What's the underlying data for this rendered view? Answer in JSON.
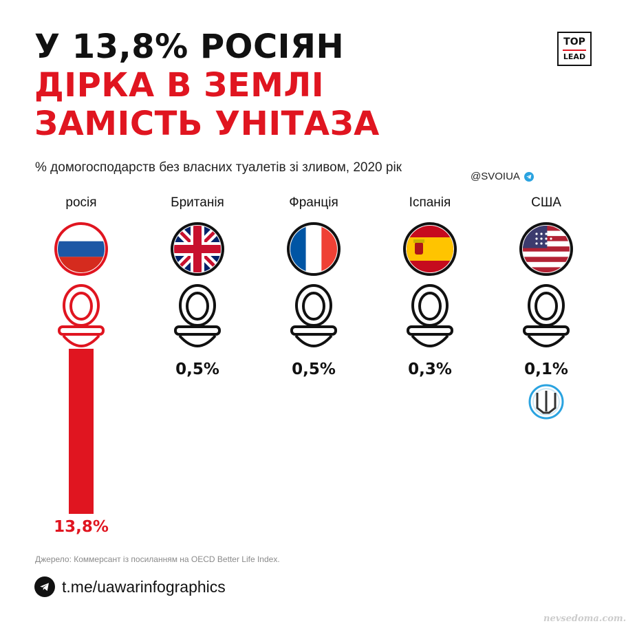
{
  "header": {
    "title_line1": "У 13,8% РОСІЯН",
    "title_line2": "ДІРКА В ЗЕМЛІ",
    "title_line3": "ЗАМІСТЬ УНІТАЗА",
    "subtitle": "% домогосподарств без власних туалетів зі зливом, 2020 рік",
    "handle": "@SVOIUA"
  },
  "logo": {
    "top": "TOP",
    "bottom": "LEAD"
  },
  "colors": {
    "accent": "#e01520",
    "dark": "#111111",
    "telegram": "#2aa3e0"
  },
  "chart_data": {
    "type": "bar",
    "title": "У 13,8% РОСІЯН ДІРКА В ЗЕМЛІ ЗАМІСТЬ УНІТАЗА",
    "subtitle": "% домогосподарств без власних туалетів зі зливом, 2020 рік",
    "categories": [
      "росія",
      "Британія",
      "Франція",
      "Іспанія",
      "США"
    ],
    "values": [
      13.8,
      0.5,
      0.5,
      0.3,
      0.1
    ],
    "value_labels": [
      "13,8%",
      "0,5%",
      "0,5%",
      "0,3%",
      "0,1%"
    ],
    "flags": [
      "russia-flag",
      "uk-flag",
      "france-flag",
      "spain-flag",
      "usa-flag"
    ],
    "highlight_index": 0,
    "ylim": [
      0,
      13.8
    ]
  },
  "footer": {
    "source": "Джерело: Коммерсант із посиланням на OECD Better Life Index.",
    "telegram_link": "t.me/uawarinfographics",
    "watermark": "nevsedoma.com.ua"
  }
}
